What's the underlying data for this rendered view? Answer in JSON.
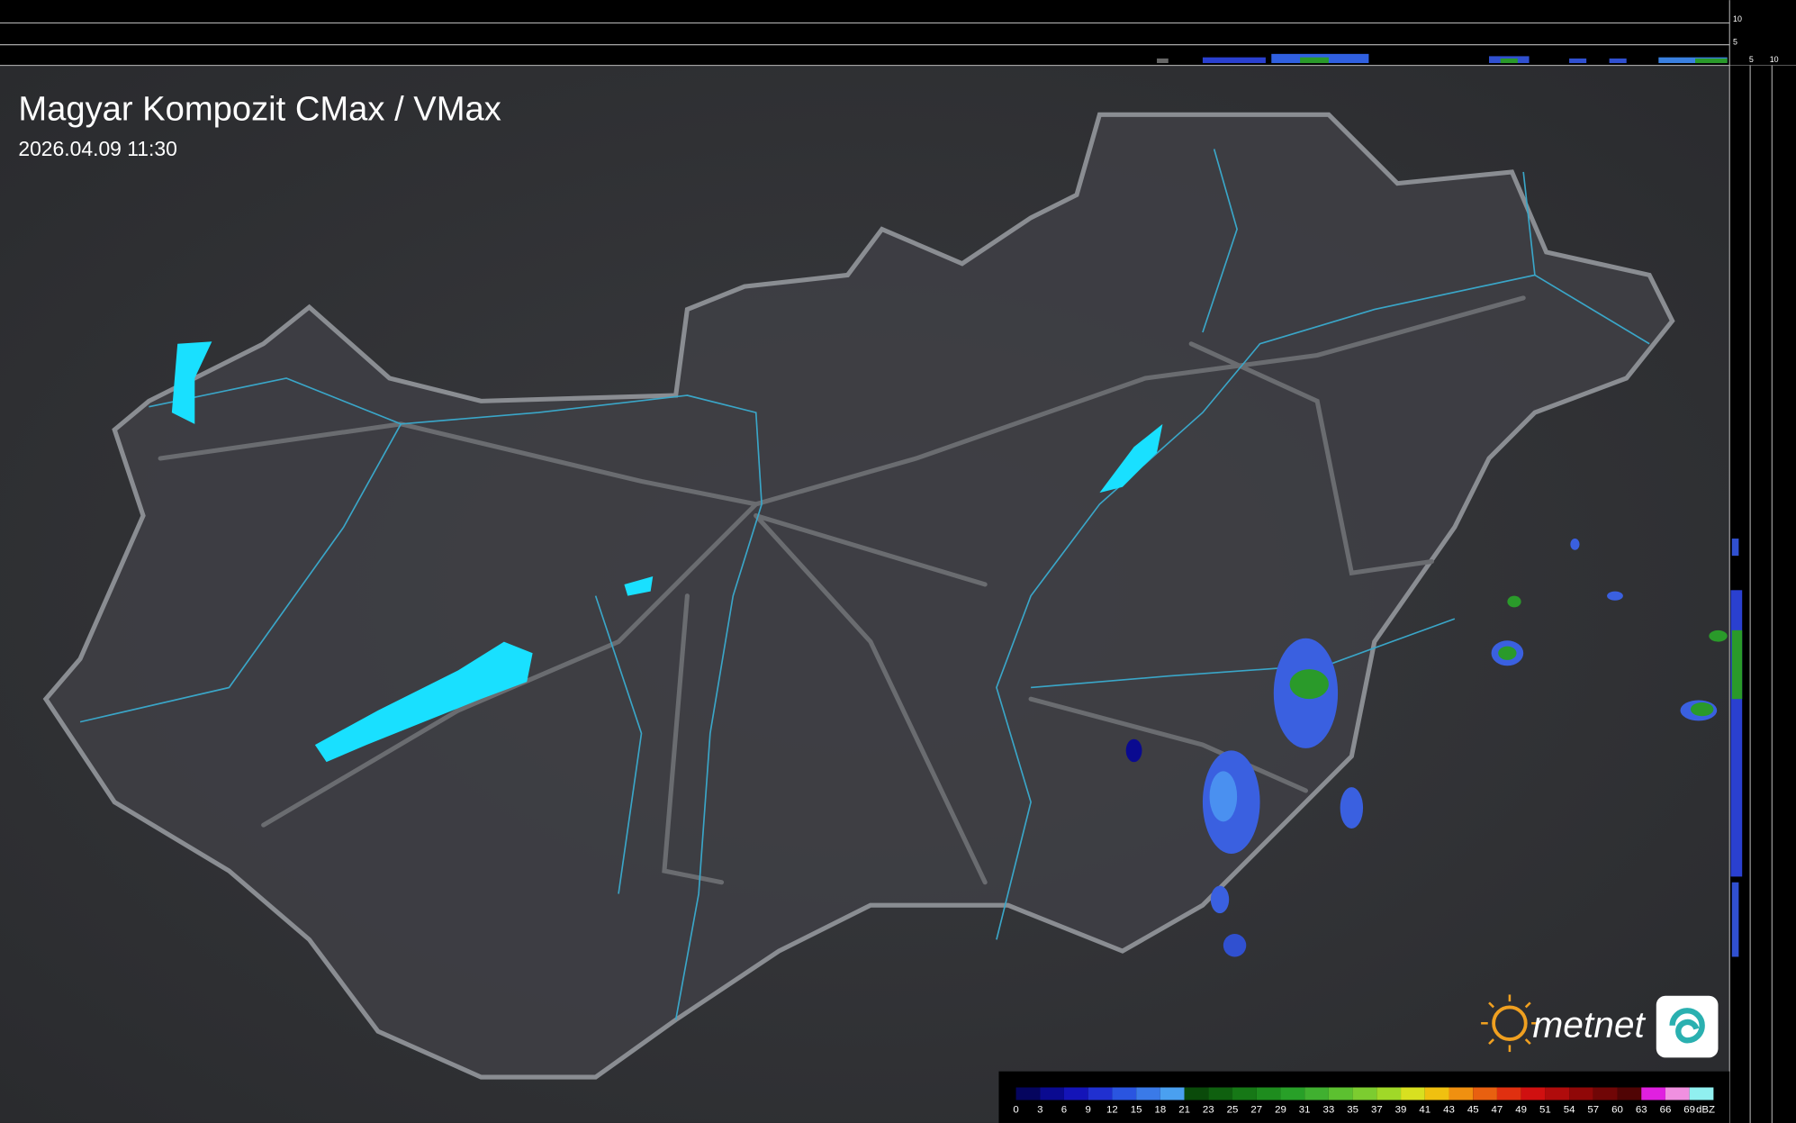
{
  "title": "Magyar Kompozit CMax / VMax",
  "timestamp": "2026.04.09 11:30",
  "brand": "metnet",
  "profile_ticks": {
    "top": [
      10,
      5
    ],
    "right": [
      5,
      10
    ]
  },
  "legend": {
    "unit": "dBZ",
    "stops": [
      {
        "value": 0,
        "color": "#05055e"
      },
      {
        "value": 3,
        "color": "#0a0a90"
      },
      {
        "value": 6,
        "color": "#1414b8"
      },
      {
        "value": 9,
        "color": "#2030d0"
      },
      {
        "value": 12,
        "color": "#2a55e0"
      },
      {
        "value": 15,
        "color": "#3a7ae8"
      },
      {
        "value": 18,
        "color": "#4aa0f0"
      },
      {
        "value": 21,
        "color": "#0a4a0a"
      },
      {
        "value": 23,
        "color": "#0f600f"
      },
      {
        "value": 25,
        "color": "#167816"
      },
      {
        "value": 27,
        "color": "#1e8c1e"
      },
      {
        "value": 29,
        "color": "#28a028"
      },
      {
        "value": 31,
        "color": "#40b030"
      },
      {
        "value": 33,
        "color": "#5cc030"
      },
      {
        "value": 35,
        "color": "#7ccc30"
      },
      {
        "value": 37,
        "color": "#a0d828"
      },
      {
        "value": 39,
        "color": "#d8e020"
      },
      {
        "value": 41,
        "color": "#f0c010"
      },
      {
        "value": 43,
        "color": "#f09010"
      },
      {
        "value": 45,
        "color": "#e86010"
      },
      {
        "value": 47,
        "color": "#e03010"
      },
      {
        "value": 49,
        "color": "#d01010"
      },
      {
        "value": 51,
        "color": "#b00c0c"
      },
      {
        "value": 54,
        "color": "#900808"
      },
      {
        "value": 57,
        "color": "#700606"
      },
      {
        "value": 60,
        "color": "#500404"
      },
      {
        "value": 63,
        "color": "#e020e0"
      },
      {
        "value": 66,
        "color": "#f090e0"
      },
      {
        "value": 69,
        "color": "#90f0f0"
      }
    ]
  }
}
